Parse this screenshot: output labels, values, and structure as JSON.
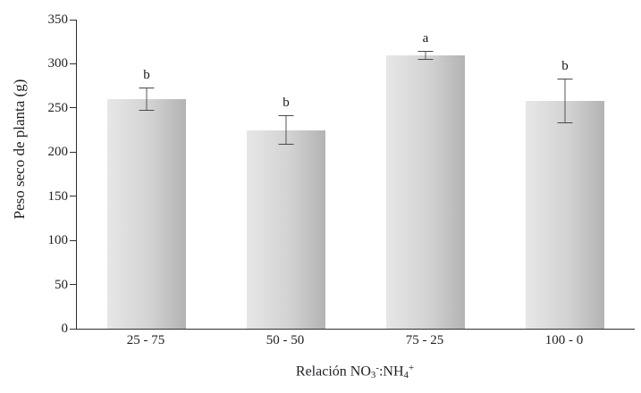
{
  "figure": {
    "background": "#ffffff",
    "text_color": "#1f1f23",
    "axis_color": "#2e2e2e",
    "error_bar_color": "#4a4a4a",
    "bar_gradient_left": "#e7e7e7",
    "bar_gradient_right": "#b3b3b3"
  },
  "chart_data": {
    "type": "bar",
    "title": "",
    "categories": [
      "25 - 75",
      "50 - 50",
      "75 - 25",
      "100 - 0"
    ],
    "values": [
      260,
      225,
      310,
      258
    ],
    "error_bars": [
      13,
      17,
      5,
      25
    ],
    "significance_letters": [
      "b",
      "b",
      "a",
      "b"
    ],
    "ylabel": "Peso seco de planta (g)",
    "xlabel": "Relación NO3-:NH4+",
    "xlabel_parts": {
      "text1": "Relación NO",
      "sub1": "3",
      "sup1": "-",
      "text2": ":NH",
      "sub2": "4",
      "sup2": "+"
    },
    "ylim": [
      0,
      350
    ],
    "yticks": [
      0,
      50,
      100,
      150,
      200,
      250,
      300,
      350
    ],
    "grid": false,
    "legend": false
  }
}
